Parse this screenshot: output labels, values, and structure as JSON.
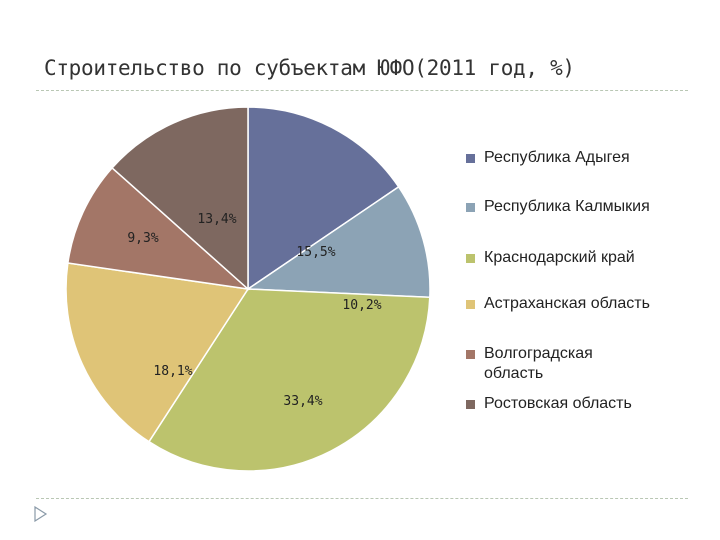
{
  "chart_data": {
    "type": "pie",
    "title": "Строительство по субъектам ЮФО(2011 год, %)",
    "slices": [
      {
        "name": "Республика Адыгея",
        "value": 15.5,
        "label": "15,5%",
        "color": "#66709a"
      },
      {
        "name": "Республика Калмыкия",
        "value": 10.2,
        "label": "10,2%",
        "color": "#8ca3b5"
      },
      {
        "name": "Краснодарский край",
        "value": 33.4,
        "label": "33,4%",
        "color": "#bcc36d"
      },
      {
        "name": "Астраханская область",
        "value": 18.1,
        "label": "18,1%",
        "color": "#dfc477"
      },
      {
        "name": "Волгоградская область",
        "value": 9.3,
        "label": "9,3%",
        "color": "#a37667"
      },
      {
        "name": "Ростовская область",
        "value": 13.4,
        "label": "13,4%",
        "color": "#7e6860"
      }
    ],
    "legend_position": "right"
  }
}
